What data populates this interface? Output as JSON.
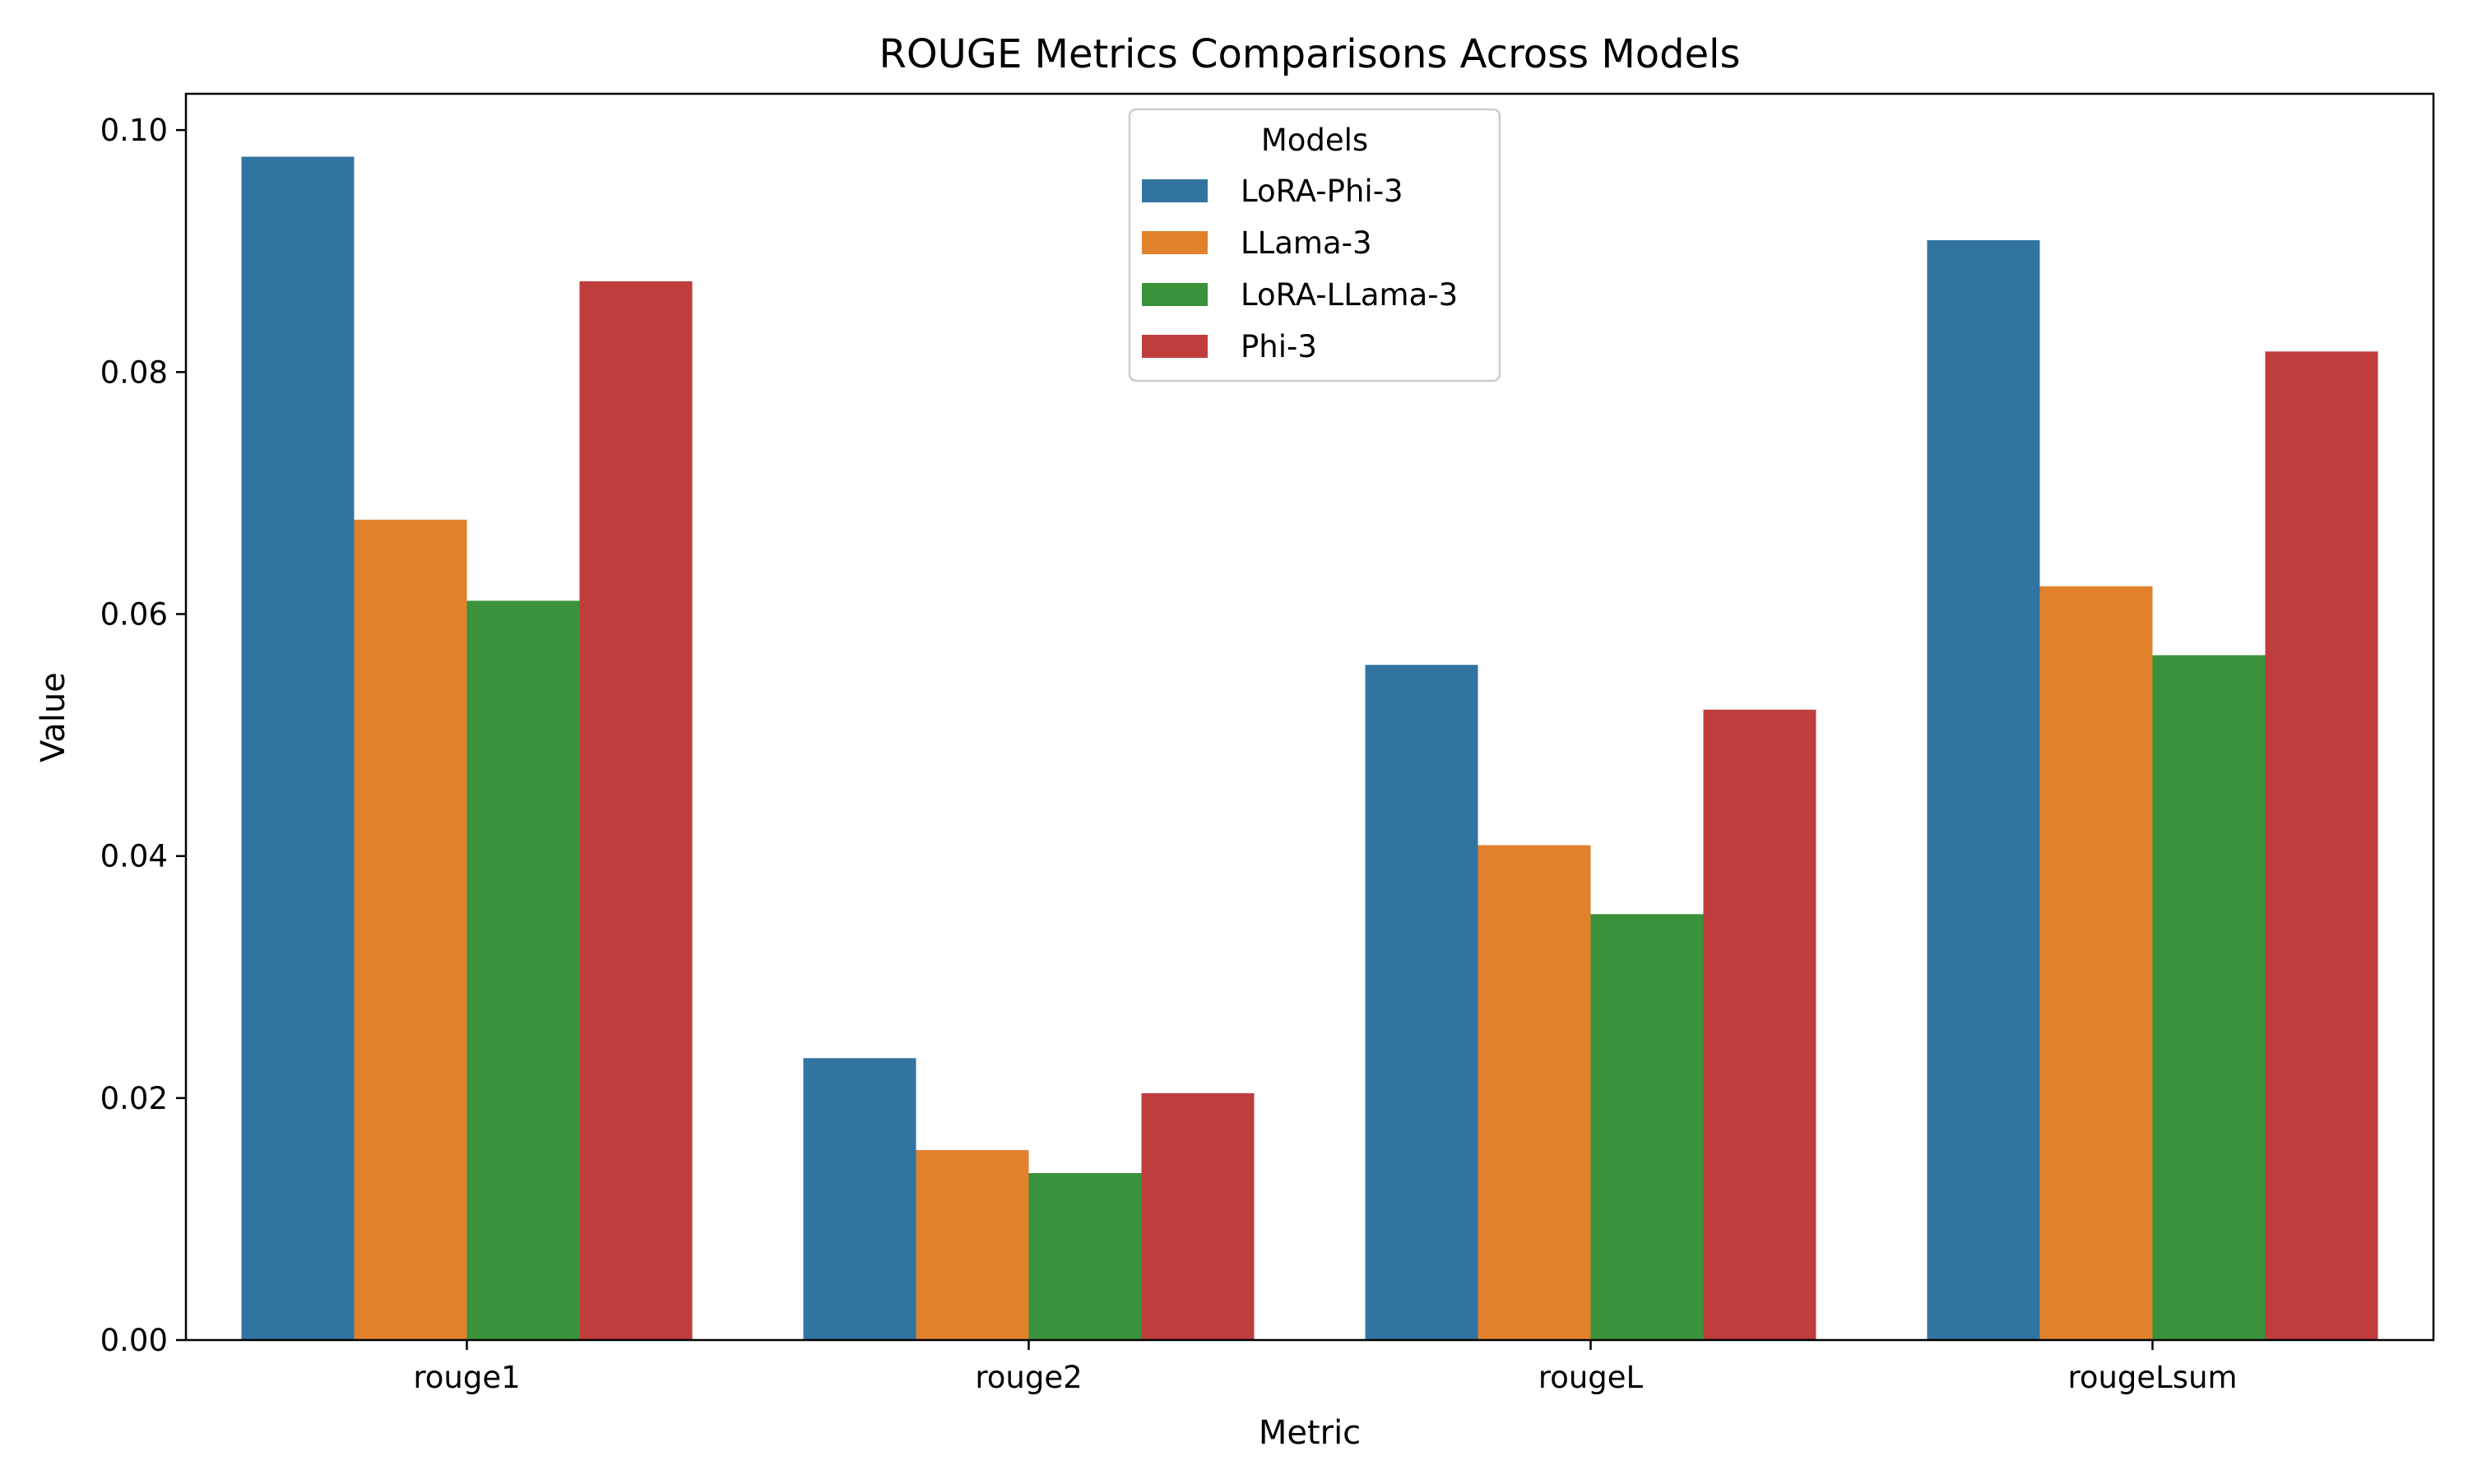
{
  "chart_data": {
    "type": "bar",
    "title": "ROUGE Metrics Comparisons Across Models",
    "xlabel": "Metric",
    "ylabel": "Value",
    "categories": [
      "rouge1",
      "rouge2",
      "rougeL",
      "rougeLsum"
    ],
    "ylim": [
      0,
      0.103
    ],
    "yticks": [
      0,
      0.02,
      0.04,
      0.06,
      0.08,
      0.1
    ],
    "ytick_labels": [
      "0.00",
      "0.02",
      "0.04",
      "0.06",
      "0.08",
      "0.10"
    ],
    "grid": false,
    "legend": {
      "title": "Models",
      "position": "top-center"
    },
    "series": [
      {
        "name": "LoRA-Phi-3",
        "color": "#3274a1",
        "values": [
          0.0978,
          0.0233,
          0.0558,
          0.0909
        ]
      },
      {
        "name": "LLama-3",
        "color": "#e1812c",
        "values": [
          0.0678,
          0.0157,
          0.0409,
          0.0623
        ]
      },
      {
        "name": "LoRA-LLama-3",
        "color": "#3a923a",
        "values": [
          0.0611,
          0.0138,
          0.0352,
          0.0566
        ]
      },
      {
        "name": "Phi-3",
        "color": "#c03d3e",
        "values": [
          0.0875,
          0.0204,
          0.0521,
          0.0817
        ]
      }
    ]
  }
}
